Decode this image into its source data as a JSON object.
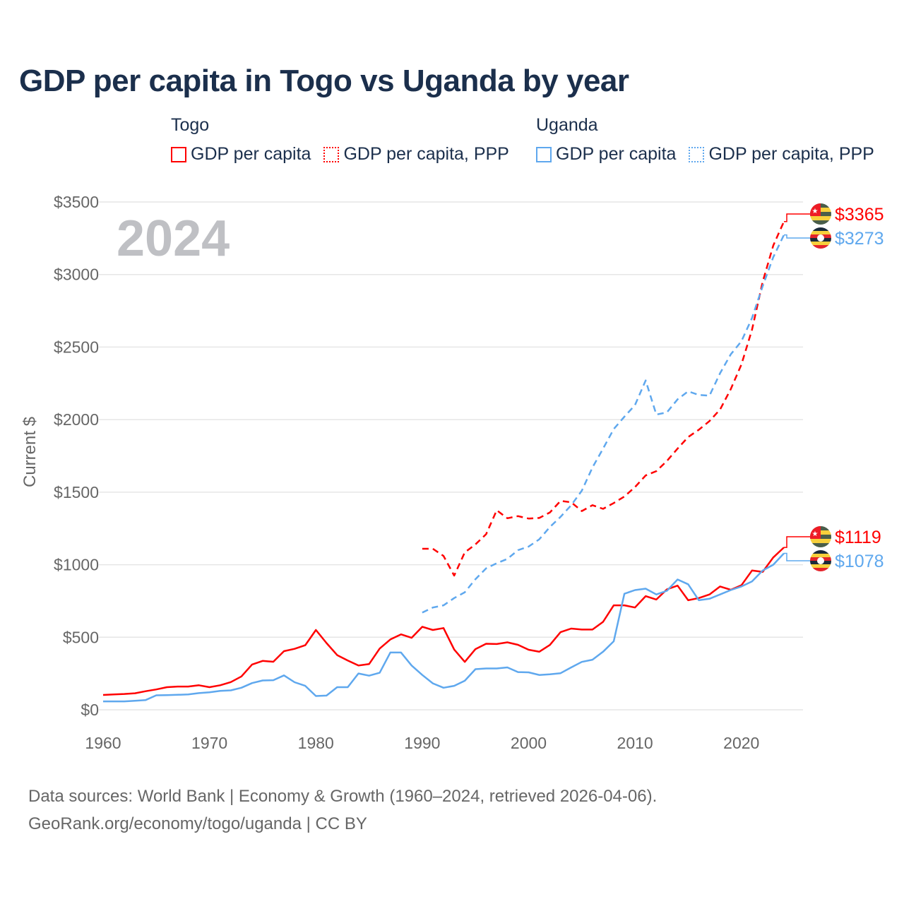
{
  "title": "GDP per capita in Togo vs Uganda by year",
  "legend": {
    "groups": [
      {
        "name": "Togo",
        "items": [
          "GDP per capita",
          "GDP per capita, PPP"
        ],
        "color": "#ff0000"
      },
      {
        "name": "Uganda",
        "items": [
          "GDP per capita",
          "GDP per capita, PPP"
        ],
        "color": "#5fa8ee"
      }
    ]
  },
  "source": {
    "line1": "Data sources: World Bank | Economy & Growth (1960–2024, retrieved 2026-04-06).",
    "line2": "GeoRank.org/economy/togo/uganda | CC BY"
  },
  "chart_data": {
    "type": "line",
    "title": "GDP per capita in Togo vs Uganda by year",
    "xlabel": "",
    "ylabel": "Current $",
    "year_label": "2024",
    "xlim": [
      1960,
      2024
    ],
    "ylim": [
      0,
      3500
    ],
    "xticks": [
      "1960",
      "1970",
      "1980",
      "1990",
      "2000",
      "2010",
      "2020"
    ],
    "xtick_values": [
      1960,
      1970,
      1980,
      1990,
      2000,
      2010,
      2020
    ],
    "yticks": [
      "$0",
      "$500",
      "$1000",
      "$1500",
      "$2000",
      "$2500",
      "$3000",
      "$3500"
    ],
    "ytick_values": [
      0,
      500,
      1000,
      1500,
      2000,
      2500,
      3000,
      3500
    ],
    "grid": true,
    "series": [
      {
        "name": "Togo GDP per capita",
        "country": "Togo",
        "color": "#ff0000",
        "dash": false,
        "start": 1960,
        "end_label": "$1119",
        "values": [
          102,
          106,
          109,
          114,
          128,
          140,
          156,
          160,
          160,
          169,
          156,
          169,
          191,
          230,
          312,
          337,
          331,
          404,
          420,
          445,
          550,
          460,
          377,
          340,
          305,
          315,
          422,
          485,
          520,
          496,
          572,
          550,
          563,
          415,
          330,
          418,
          455,
          453,
          465,
          448,
          414,
          400,
          447,
          535,
          560,
          553,
          553,
          606,
          720,
          720,
          705,
          783,
          760,
          830,
          856,
          755,
          770,
          795,
          850,
          827,
          858,
          960,
          950,
          1050,
          1119
        ]
      },
      {
        "name": "Togo GDP per capita, PPP",
        "country": "Togo",
        "color": "#ff0000",
        "dash": true,
        "start": 1990,
        "end_label": "$3365",
        "values": [
          1110,
          1110,
          1060,
          925,
          1085,
          1140,
          1210,
          1375,
          1320,
          1335,
          1318,
          1322,
          1360,
          1440,
          1430,
          1370,
          1410,
          1385,
          1425,
          1470,
          1535,
          1615,
          1645,
          1715,
          1800,
          1880,
          1930,
          1990,
          2070,
          2210,
          2380,
          2620,
          2950,
          3200,
          3365
        ]
      },
      {
        "name": "Uganda GDP per capita",
        "country": "Uganda",
        "color": "#5fa8ee",
        "dash": false,
        "start": 1960,
        "end_label": "$1078",
        "values": [
          58,
          58,
          58,
          62,
          67,
          100,
          101,
          103,
          106,
          115,
          120,
          130,
          134,
          152,
          184,
          202,
          204,
          237,
          190,
          165,
          95,
          98,
          156,
          156,
          250,
          235,
          255,
          395,
          395,
          305,
          240,
          182,
          152,
          165,
          200,
          280,
          285,
          285,
          292,
          260,
          258,
          240,
          245,
          252,
          292,
          330,
          345,
          400,
          472,
          800,
          825,
          835,
          795,
          820,
          898,
          865,
          755,
          765,
          795,
          825,
          850,
          885,
          960,
          1000,
          1078
        ]
      },
      {
        "name": "Uganda GDP per capita, PPP",
        "country": "Uganda",
        "color": "#5fa8ee",
        "dash": true,
        "start": 1990,
        "end_label": "$3273",
        "values": [
          670,
          705,
          720,
          770,
          810,
          900,
          975,
          1010,
          1040,
          1100,
          1125,
          1175,
          1260,
          1330,
          1410,
          1510,
          1670,
          1800,
          1935,
          2020,
          2100,
          2270,
          2035,
          2050,
          2140,
          2195,
          2170,
          2165,
          2320,
          2450,
          2540,
          2700,
          2920,
          3120,
          3273
        ]
      }
    ]
  }
}
